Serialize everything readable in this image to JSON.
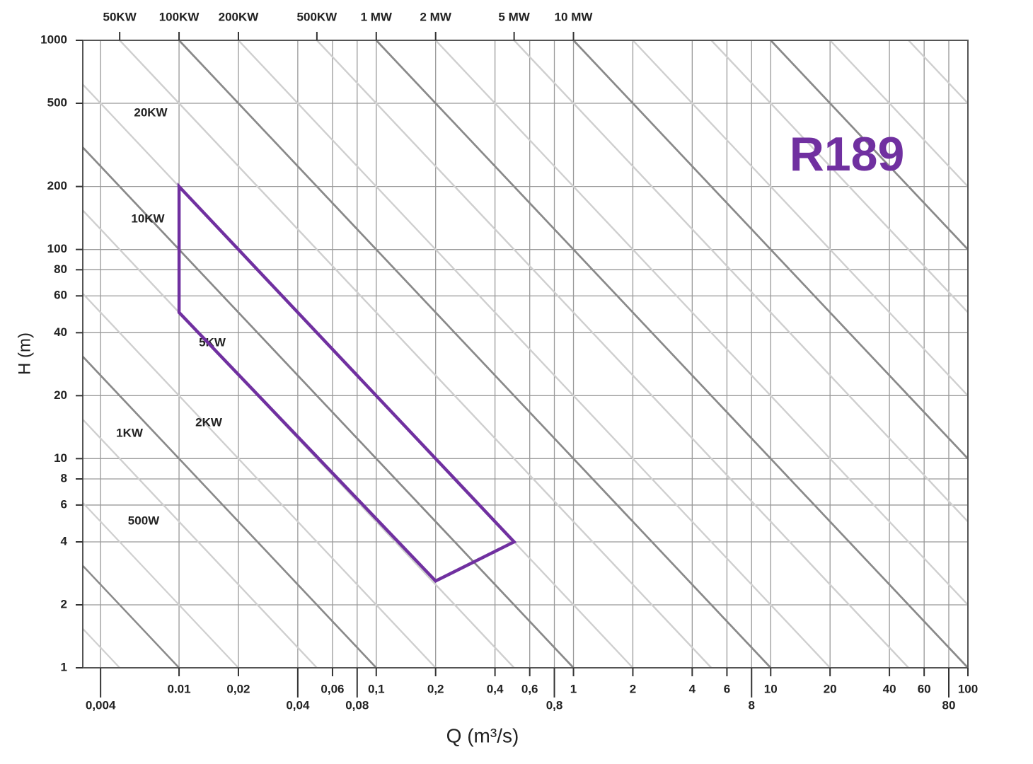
{
  "chart_data": {
    "type": "polygon",
    "x_label": "Q (m³/s)",
    "y_label": "H (m)",
    "x": [
      0.01,
      0.01,
      0.2,
      0.5
    ],
    "values": [
      200,
      50,
      2.6,
      4
    ],
    "color": "#7030a0",
    "log_x": true,
    "log_y": true,
    "grid": true,
    "xlim": [
      0.00325,
      100
    ],
    "ylim": [
      1,
      1000
    ],
    "xticks": [
      {
        "value": 0.004,
        "label": "0,004"
      },
      {
        "value": 0.01,
        "label": "0.01"
      },
      {
        "value": 0.02,
        "label": "0,02"
      },
      {
        "value": 0.04,
        "label": "0,04"
      },
      {
        "value": 0.06,
        "label": "0,06"
      },
      {
        "value": 0.08,
        "label": "0,08"
      },
      {
        "value": 0.1,
        "label": "0,1"
      },
      {
        "value": 0.2,
        "label": "0,2"
      },
      {
        "value": 0.4,
        "label": "0,4"
      },
      {
        "value": 0.6,
        "label": "0,6"
      },
      {
        "value": 0.8,
        "label": "0,8"
      },
      1,
      2,
      4,
      6,
      8,
      10,
      20,
      40,
      60,
      80,
      100
    ],
    "yticks": [
      1,
      2,
      4,
      6,
      8,
      10,
      20,
      40,
      60,
      80,
      100,
      200,
      500,
      1000
    ],
    "x2ticks": [
      {
        "value": 0.005,
        "label": "50KW"
      },
      {
        "value": 0.01,
        "label": "100KW"
      },
      {
        "value": 0.02,
        "label": "200KW"
      },
      {
        "value": 0.05,
        "label": "500KW"
      },
      {
        "value": 0.1,
        "label": "1 MW"
      },
      {
        "value": 0.2,
        "label": "2 MW"
      },
      {
        "value": 0.5,
        "label": "5 MW"
      },
      {
        "value": 1,
        "label": "10 MW"
      }
    ],
    "annotations": [
      "20KW",
      "10KW",
      "5KW",
      "2KW",
      "1KW",
      "500W",
      "R189"
    ]
  }
}
